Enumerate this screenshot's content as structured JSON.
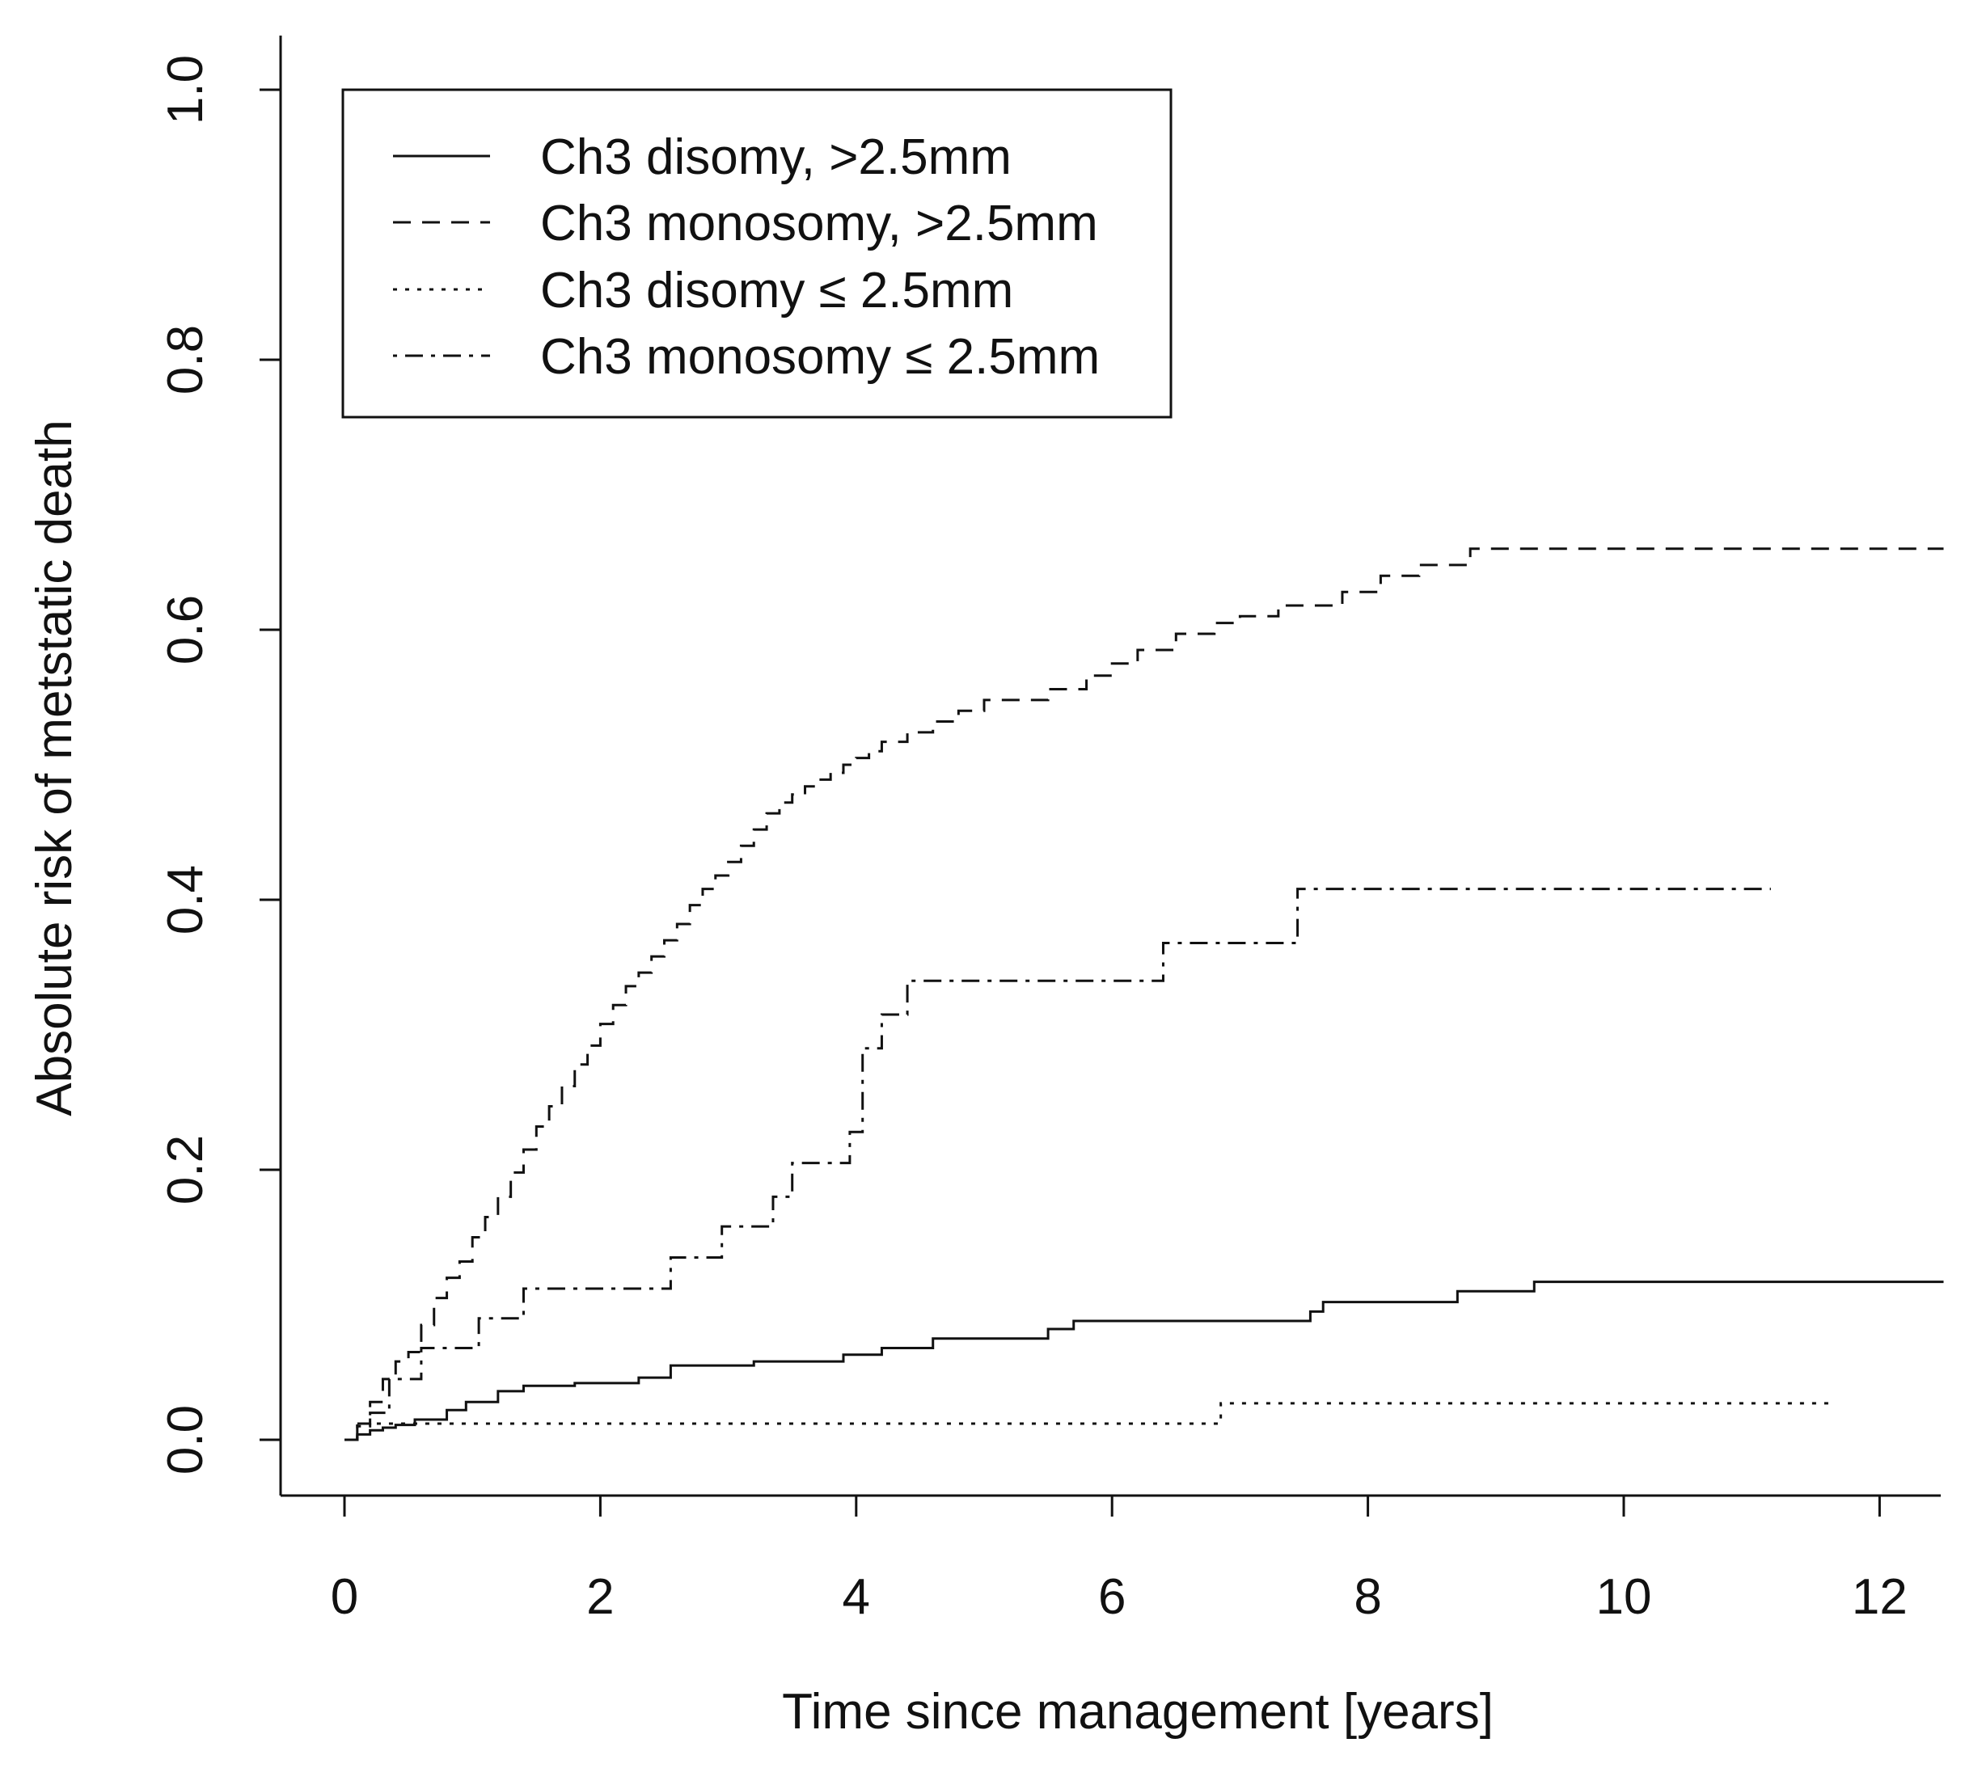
{
  "chart_data": {
    "type": "line",
    "step": true,
    "title": "",
    "xlabel": "Time since management [years]",
    "ylabel": "Absolute risk of metstatic death",
    "xlim": [
      -0.0,
      12.5
    ],
    "ylim": [
      0.0,
      1.0
    ],
    "x_ticks": [
      "0",
      "2",
      "4",
      "6",
      "8",
      "10",
      "12"
    ],
    "y_ticks": [
      "0.0",
      "0.2",
      "0.4",
      "0.6",
      "0.8",
      "1.0"
    ],
    "legend_position": "top-left",
    "series": [
      {
        "name": "Ch3 disomy, >2.5mm",
        "dash": "solid",
        "x": [
          0,
          0.1,
          0.2,
          0.3,
          0.4,
          0.55,
          0.8,
          0.95,
          1.2,
          1.4,
          1.8,
          2.3,
          2.55,
          3.2,
          3.9,
          4.2,
          4.6,
          5.5,
          5.7,
          7.55,
          7.65,
          8.7,
          9.3,
          12.5
        ],
        "y": [
          0.0,
          0.004,
          0.007,
          0.009,
          0.011,
          0.015,
          0.022,
          0.028,
          0.036,
          0.04,
          0.042,
          0.046,
          0.055,
          0.058,
          0.063,
          0.068,
          0.075,
          0.082,
          0.088,
          0.095,
          0.102,
          0.11,
          0.117,
          0.117
        ]
      },
      {
        "name": "Ch3 monosomy, >2.5mm",
        "dash": "dashed",
        "x": [
          0,
          0.1,
          0.2,
          0.3,
          0.4,
          0.5,
          0.6,
          0.7,
          0.8,
          0.9,
          1.0,
          1.1,
          1.2,
          1.3,
          1.4,
          1.5,
          1.6,
          1.7,
          1.8,
          1.9,
          2.0,
          2.1,
          2.2,
          2.3,
          2.4,
          2.5,
          2.6,
          2.7,
          2.8,
          2.9,
          3.0,
          3.1,
          3.2,
          3.3,
          3.4,
          3.5,
          3.6,
          3.7,
          3.8,
          3.9,
          4.0,
          4.1,
          4.2,
          4.4,
          4.6,
          4.8,
          5.0,
          5.5,
          5.8,
          6.0,
          6.2,
          6.5,
          6.8,
          7.0,
          7.3,
          7.8,
          8.1,
          8.4,
          8.8,
          12.5
        ],
        "y": [
          0.0,
          0.012,
          0.028,
          0.045,
          0.058,
          0.065,
          0.085,
          0.105,
          0.12,
          0.132,
          0.15,
          0.165,
          0.18,
          0.198,
          0.215,
          0.232,
          0.247,
          0.262,
          0.278,
          0.292,
          0.308,
          0.322,
          0.336,
          0.346,
          0.358,
          0.37,
          0.382,
          0.396,
          0.408,
          0.418,
          0.428,
          0.44,
          0.452,
          0.464,
          0.472,
          0.478,
          0.484,
          0.489,
          0.494,
          0.5,
          0.505,
          0.51,
          0.517,
          0.524,
          0.532,
          0.54,
          0.548,
          0.556,
          0.566,
          0.575,
          0.585,
          0.597,
          0.605,
          0.61,
          0.618,
          0.628,
          0.64,
          0.648,
          0.66,
          0.66
        ]
      },
      {
        "name": "Ch3 disomy ≤ 2.5mm",
        "dash": "dotted",
        "x": [
          0,
          0.1,
          6.85,
          11.65
        ],
        "y": [
          0.0,
          0.012,
          0.027,
          0.027
        ]
      },
      {
        "name": "Ch3 monosomy ≤ 2.5mm",
        "dash": "dotdash",
        "x": [
          0,
          0.1,
          0.2,
          0.35,
          0.6,
          1.05,
          1.4,
          2.55,
          2.95,
          3.35,
          3.5,
          3.95,
          4.05,
          4.2,
          4.4,
          6.4,
          7.45,
          11.15
        ],
        "y": [
          0.0,
          0.01,
          0.02,
          0.045,
          0.068,
          0.09,
          0.112,
          0.135,
          0.158,
          0.18,
          0.205,
          0.228,
          0.29,
          0.315,
          0.34,
          0.368,
          0.408,
          0.408
        ]
      }
    ]
  }
}
